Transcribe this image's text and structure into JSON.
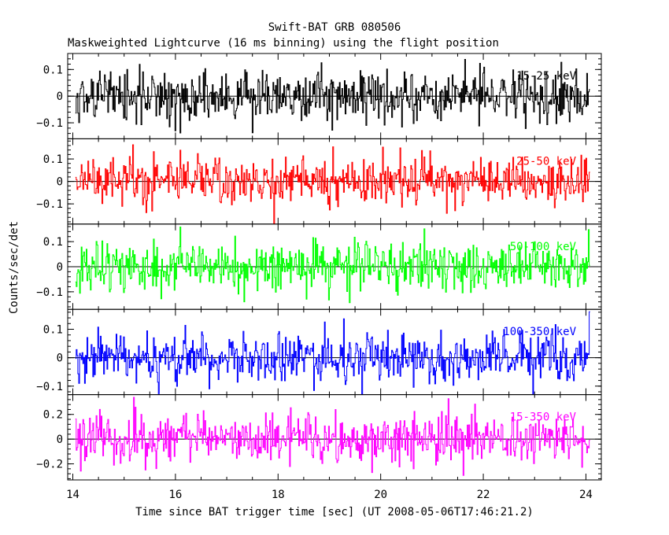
{
  "chart_data": {
    "type": "line",
    "title": "Swift-BAT GRB 080506",
    "subtitle": "Maskweighted Lightcurve (16 ms binning) using the flight position",
    "xlabel": "Time since BAT trigger time [sec] (UT 2008-05-06T17:46:21.2)",
    "ylabel": "Counts/sec/det",
    "xlim": [
      13.9,
      24.3
    ],
    "x_ticks": [
      "14",
      "16",
      "18",
      "20",
      "22",
      "24"
    ],
    "x_tick_values": [
      14,
      16,
      18,
      20,
      22,
      24
    ],
    "x_range_data": [
      14.05,
      24.08
    ],
    "grid": false,
    "panels": [
      {
        "name": "15-25 keV",
        "color": "#000000",
        "ylim": [
          -0.16,
          0.16
        ],
        "yticks": [
          -0.1,
          0,
          0.1
        ],
        "ytick_labels": [
          "−0.1",
          "0",
          "0.1"
        ],
        "noise_sigma": 0.05
      },
      {
        "name": "25-50 keV",
        "color": "#ff0000",
        "ylim": [
          -0.19,
          0.19
        ],
        "yticks": [
          -0.1,
          0,
          0.1
        ],
        "ytick_labels": [
          "−0.1",
          "0",
          "0.1"
        ],
        "noise_sigma": 0.055
      },
      {
        "name": "50-100 keV",
        "color": "#00ff00",
        "ylim": [
          -0.17,
          0.17
        ],
        "yticks": [
          -0.1,
          0,
          0.1
        ],
        "ytick_labels": [
          "−0.1",
          "0",
          "0.1"
        ],
        "noise_sigma": 0.05
      },
      {
        "name": "100-350 keV",
        "color": "#0000ff",
        "ylim": [
          -0.13,
          0.17
        ],
        "yticks": [
          -0.1,
          0,
          0.1
        ],
        "ytick_labels": [
          "−0.1",
          "0",
          "0.1"
        ],
        "noise_sigma": 0.045
      },
      {
        "name": "15-350 keV",
        "color": "#ff00ff",
        "ylim": [
          -0.33,
          0.36
        ],
        "yticks": [
          -0.2,
          0,
          0.2
        ],
        "ytick_labels": [
          "−0.2",
          "0",
          "0.2"
        ],
        "noise_sigma": 0.1
      }
    ]
  }
}
